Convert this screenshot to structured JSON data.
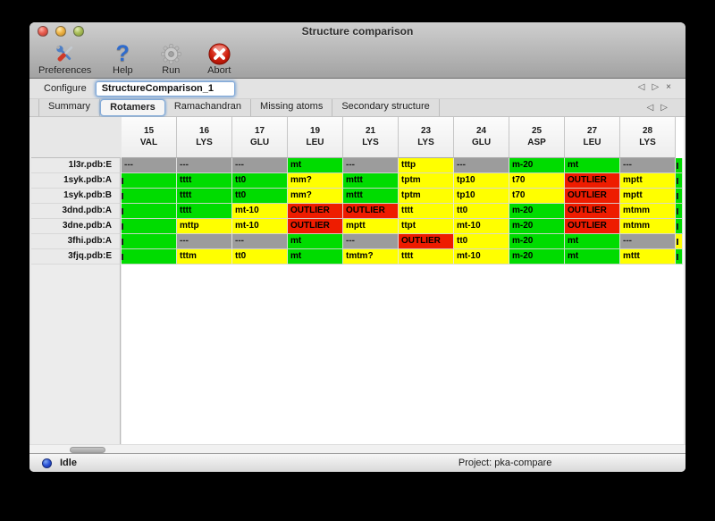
{
  "window": {
    "title": "Structure comparison"
  },
  "toolbar": {
    "items": [
      {
        "label": "Preferences",
        "icon": "tools-icon"
      },
      {
        "label": "Help",
        "icon": "help-icon"
      },
      {
        "label": "Run",
        "icon": "gear-icon"
      },
      {
        "label": "Abort",
        "icon": "abort-icon"
      }
    ]
  },
  "configure": {
    "label": "Configure",
    "value": "StructureComparison_1"
  },
  "tabs": {
    "items": [
      "Summary",
      "Rotamers",
      "Ramachandran",
      "Missing atoms",
      "Secondary structure"
    ],
    "active": "Rotamers"
  },
  "colors": {
    "green": "#00dc00",
    "yellow": "#ffff00",
    "red": "#ee1c00",
    "gray": "#9c9c9c",
    "focus_ring": "#7fa8d9",
    "status_dot": "#2a52d8"
  },
  "table": {
    "columns": [
      {
        "num": "15",
        "res": "VAL"
      },
      {
        "num": "16",
        "res": "LYS"
      },
      {
        "num": "17",
        "res": "GLU"
      },
      {
        "num": "19",
        "res": "LEU"
      },
      {
        "num": "21",
        "res": "LYS"
      },
      {
        "num": "23",
        "res": "LYS"
      },
      {
        "num": "24",
        "res": "GLU"
      },
      {
        "num": "25",
        "res": "ASP"
      },
      {
        "num": "27",
        "res": "LEU"
      },
      {
        "num": "28",
        "res": "LYS"
      }
    ],
    "rows": [
      {
        "label": "1l3r.pdb:E",
        "cells": [
          {
            "t": "---",
            "c": "gray"
          },
          {
            "t": "---",
            "c": "gray"
          },
          {
            "t": "---",
            "c": "gray"
          },
          {
            "t": "mt",
            "c": "green"
          },
          {
            "t": "---",
            "c": "gray"
          },
          {
            "t": "tttp",
            "c": "yellow"
          },
          {
            "t": "---",
            "c": "gray"
          },
          {
            "t": "m-20",
            "c": "green"
          },
          {
            "t": "mt",
            "c": "green"
          },
          {
            "t": "---",
            "c": "gray"
          }
        ],
        "extra": {
          "c": "green",
          "mark": true
        }
      },
      {
        "label": "1syk.pdb:A",
        "cells": [
          {
            "t": "",
            "c": "green",
            "mark": true
          },
          {
            "t": "tttt",
            "c": "green"
          },
          {
            "t": "tt0",
            "c": "green"
          },
          {
            "t": "mm?",
            "c": "yellow"
          },
          {
            "t": "mttt",
            "c": "green"
          },
          {
            "t": "tptm",
            "c": "yellow"
          },
          {
            "t": "tp10",
            "c": "yellow"
          },
          {
            "t": "t70",
            "c": "yellow"
          },
          {
            "t": "OUTLIER",
            "c": "red"
          },
          {
            "t": "mptt",
            "c": "yellow"
          }
        ],
        "extra": {
          "c": "green",
          "mark": true
        }
      },
      {
        "label": "1syk.pdb:B",
        "cells": [
          {
            "t": "",
            "c": "green",
            "mark": true
          },
          {
            "t": "tttt",
            "c": "green"
          },
          {
            "t": "tt0",
            "c": "green"
          },
          {
            "t": "mm?",
            "c": "yellow"
          },
          {
            "t": "mttt",
            "c": "green"
          },
          {
            "t": "tptm",
            "c": "yellow"
          },
          {
            "t": "tp10",
            "c": "yellow"
          },
          {
            "t": "t70",
            "c": "yellow"
          },
          {
            "t": "OUTLIER",
            "c": "red"
          },
          {
            "t": "mptt",
            "c": "yellow"
          }
        ],
        "extra": {
          "c": "green",
          "mark": true
        }
      },
      {
        "label": "3dnd.pdb:A",
        "cells": [
          {
            "t": "",
            "c": "green",
            "mark": true
          },
          {
            "t": "tttt",
            "c": "green"
          },
          {
            "t": "mt-10",
            "c": "yellow"
          },
          {
            "t": "OUTLIER",
            "c": "red"
          },
          {
            "t": "OUTLIER",
            "c": "red"
          },
          {
            "t": "tttt",
            "c": "yellow"
          },
          {
            "t": "tt0",
            "c": "yellow"
          },
          {
            "t": "m-20",
            "c": "green"
          },
          {
            "t": "OUTLIER",
            "c": "red"
          },
          {
            "t": "mtmm",
            "c": "yellow"
          }
        ],
        "extra": {
          "c": "green",
          "mark": true
        }
      },
      {
        "label": "3dne.pdb:A",
        "cells": [
          {
            "t": "",
            "c": "green",
            "mark": true
          },
          {
            "t": "mttp",
            "c": "yellow"
          },
          {
            "t": "mt-10",
            "c": "yellow"
          },
          {
            "t": "OUTLIER",
            "c": "red"
          },
          {
            "t": "mptt",
            "c": "yellow"
          },
          {
            "t": "ttpt",
            "c": "yellow"
          },
          {
            "t": "mt-10",
            "c": "yellow"
          },
          {
            "t": "m-20",
            "c": "green"
          },
          {
            "t": "OUTLIER",
            "c": "red"
          },
          {
            "t": "mtmm",
            "c": "yellow"
          }
        ],
        "extra": {
          "c": "green",
          "mark": true
        }
      },
      {
        "label": "3fhi.pdb:A",
        "cells": [
          {
            "t": "",
            "c": "green",
            "mark": true
          },
          {
            "t": "---",
            "c": "gray"
          },
          {
            "t": "---",
            "c": "gray"
          },
          {
            "t": "mt",
            "c": "green"
          },
          {
            "t": "---",
            "c": "gray"
          },
          {
            "t": "OUTLIER",
            "c": "red"
          },
          {
            "t": "tt0",
            "c": "yellow"
          },
          {
            "t": "m-20",
            "c": "green"
          },
          {
            "t": "mt",
            "c": "green"
          },
          {
            "t": "---",
            "c": "gray"
          }
        ],
        "extra": {
          "c": "yellow",
          "mark": true
        }
      },
      {
        "label": "3fjq.pdb:E",
        "cells": [
          {
            "t": "",
            "c": "green",
            "mark": true
          },
          {
            "t": "tttm",
            "c": "yellow"
          },
          {
            "t": "tt0",
            "c": "yellow"
          },
          {
            "t": "mt",
            "c": "green"
          },
          {
            "t": "tmtm?",
            "c": "yellow"
          },
          {
            "t": "tttt",
            "c": "yellow"
          },
          {
            "t": "mt-10",
            "c": "yellow"
          },
          {
            "t": "m-20",
            "c": "green"
          },
          {
            "t": "mt",
            "c": "green"
          },
          {
            "t": "mttt",
            "c": "yellow"
          }
        ],
        "extra": {
          "c": "green",
          "mark": true
        }
      }
    ]
  },
  "statusbar": {
    "status": "Idle",
    "project": "Project: pka-compare"
  }
}
